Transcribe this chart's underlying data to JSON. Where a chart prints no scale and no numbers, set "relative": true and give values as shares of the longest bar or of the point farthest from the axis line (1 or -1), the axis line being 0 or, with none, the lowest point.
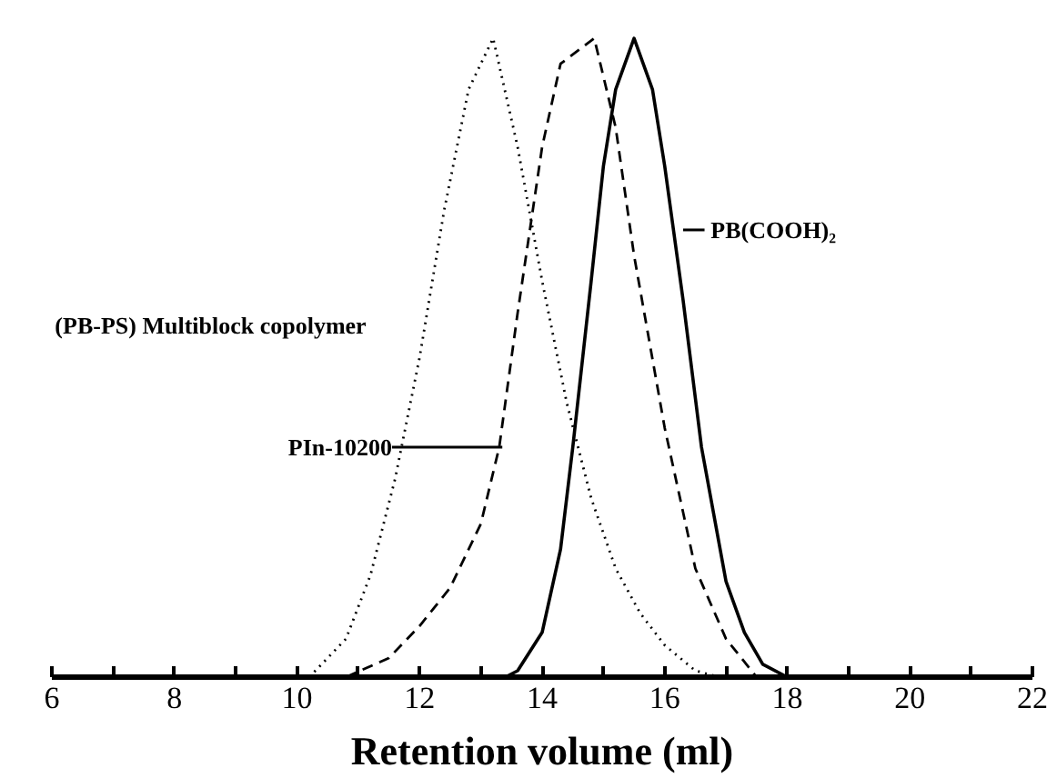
{
  "chart_data": {
    "type": "line",
    "relative": true,
    "xlabel": "Retention volume (ml)",
    "xlim": [
      6,
      22
    ],
    "xticks": [
      6,
      {
        "value": 7,
        "label": null
      },
      8,
      {
        "value": 9,
        "label": null
      },
      10,
      {
        "value": 11,
        "label": null
      },
      12,
      {
        "value": 13,
        "label": null
      },
      14,
      {
        "value": 15,
        "label": null
      },
      16,
      {
        "value": 17,
        "label": null
      },
      18,
      {
        "value": 19,
        "label": null
      },
      20,
      {
        "value": 21,
        "label": null
      },
      22
    ],
    "series": [
      {
        "color": "#000000",
        "line_style": "dotted",
        "x": [
          10.2,
          10.8,
          11.2,
          11.6,
          12.0,
          12.4,
          12.8,
          13.2,
          13.6,
          14.0,
          14.4,
          14.8,
          15.2,
          15.6,
          16.0,
          16.5,
          16.9
        ],
        "values": [
          0,
          0.06,
          0.16,
          0.31,
          0.5,
          0.73,
          0.92,
          1.0,
          0.83,
          0.62,
          0.43,
          0.28,
          0.17,
          0.1,
          0.05,
          0.01,
          0
        ]
      },
      {
        "color": "#000000",
        "line_style": "dashed",
        "x": [
          10.8,
          11.5,
          12.0,
          12.5,
          13.0,
          13.3,
          13.6,
          14.0,
          14.3,
          14.85,
          15.2,
          15.5,
          16.0,
          16.5,
          17.0,
          17.5
        ],
        "values": [
          0,
          0.03,
          0.08,
          0.14,
          0.24,
          0.36,
          0.57,
          0.83,
          0.96,
          1.0,
          0.86,
          0.66,
          0.39,
          0.17,
          0.06,
          0
        ]
      },
      {
        "color": "#000000",
        "line_style": "solid",
        "x": [
          13.4,
          13.6,
          14.0,
          14.3,
          14.5,
          14.8,
          15.0,
          15.2,
          15.5,
          15.8,
          16.0,
          16.3,
          16.6,
          17.0,
          17.3,
          17.6,
          18.0
        ],
        "values": [
          0,
          0.01,
          0.07,
          0.2,
          0.36,
          0.62,
          0.8,
          0.92,
          1.0,
          0.92,
          0.8,
          0.59,
          0.36,
          0.15,
          0.07,
          0.02,
          0
        ]
      }
    ],
    "annotations": [
      "(PB-PS) Multiblock copolymer",
      "PIn-10200",
      "PB(COOH)₂"
    ]
  }
}
